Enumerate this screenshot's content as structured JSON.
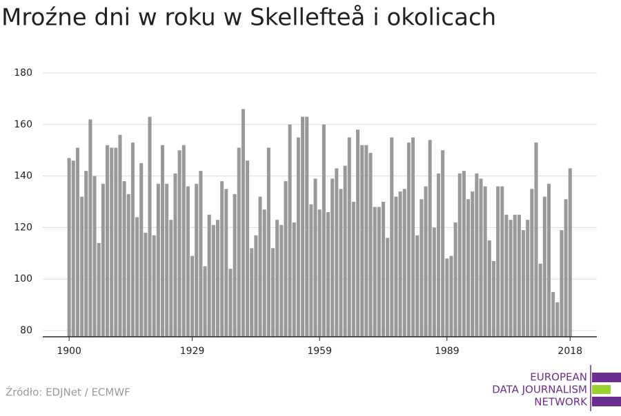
{
  "chart_data": {
    "type": "bar",
    "title": "Mroźne dni w roku w Skellefteå i okolicach",
    "source": "Źródło: EDJNet / ECMWF",
    "x": [
      1900,
      1901,
      1902,
      1903,
      1904,
      1905,
      1906,
      1907,
      1908,
      1909,
      1910,
      1911,
      1912,
      1913,
      1914,
      1915,
      1916,
      1917,
      1918,
      1919,
      1920,
      1921,
      1922,
      1923,
      1924,
      1925,
      1926,
      1927,
      1928,
      1929,
      1930,
      1931,
      1932,
      1933,
      1934,
      1935,
      1936,
      1937,
      1938,
      1939,
      1940,
      1941,
      1942,
      1943,
      1944,
      1945,
      1946,
      1947,
      1948,
      1949,
      1950,
      1951,
      1952,
      1953,
      1954,
      1955,
      1956,
      1957,
      1958,
      1959,
      1960,
      1961,
      1962,
      1963,
      1964,
      1965,
      1966,
      1967,
      1968,
      1969,
      1970,
      1971,
      1972,
      1973,
      1974,
      1975,
      1976,
      1977,
      1978,
      1979,
      1980,
      1981,
      1982,
      1983,
      1984,
      1985,
      1986,
      1987,
      1988,
      1989,
      1990,
      1991,
      1992,
      1993,
      1994,
      1995,
      1996,
      1997,
      1998,
      1999,
      2000,
      2001,
      2002,
      2003,
      2004,
      2005,
      2006,
      2007,
      2008,
      2009,
      2010,
      2011,
      2012,
      2013,
      2014,
      2015,
      2016,
      2017,
      2018
    ],
    "values": [
      147,
      146,
      151,
      132,
      142,
      162,
      140,
      114,
      137,
      152,
      151,
      151,
      156,
      138,
      133,
      153,
      124,
      145,
      118,
      163,
      117,
      137,
      152,
      137,
      123,
      141,
      150,
      152,
      136,
      109,
      137,
      142,
      105,
      125,
      121,
      123,
      138,
      135,
      104,
      133,
      151,
      166,
      146,
      112,
      117,
      132,
      127,
      151,
      112,
      123,
      121,
      138,
      160,
      122,
      155,
      163,
      163,
      129,
      139,
      127,
      160,
      126,
      139,
      143,
      135,
      144,
      155,
      130,
      158,
      152,
      152,
      149,
      128,
      128,
      130,
      116,
      155,
      132,
      134,
      135,
      153,
      155,
      117,
      131,
      136,
      154,
      120,
      141,
      150,
      108,
      109,
      122,
      141,
      142,
      131,
      134,
      141,
      139,
      136,
      115,
      107,
      136,
      136,
      125,
      123,
      125,
      125,
      119,
      123,
      135,
      153,
      106,
      132,
      137,
      95,
      91,
      119,
      131,
      143
    ],
    "color": "#999999",
    "xlim": [
      1893.8,
      2024.3
    ],
    "xticks": [
      1900,
      1929,
      1959,
      1989,
      2018
    ],
    "ylim": [
      77.6,
      181.6
    ],
    "yticks": [
      80,
      100,
      120,
      140,
      160,
      180
    ],
    "grid": true
  },
  "logo": {
    "lines": [
      "EUROPEAN",
      "DATA JOURNALISM",
      "NETWORK"
    ]
  }
}
